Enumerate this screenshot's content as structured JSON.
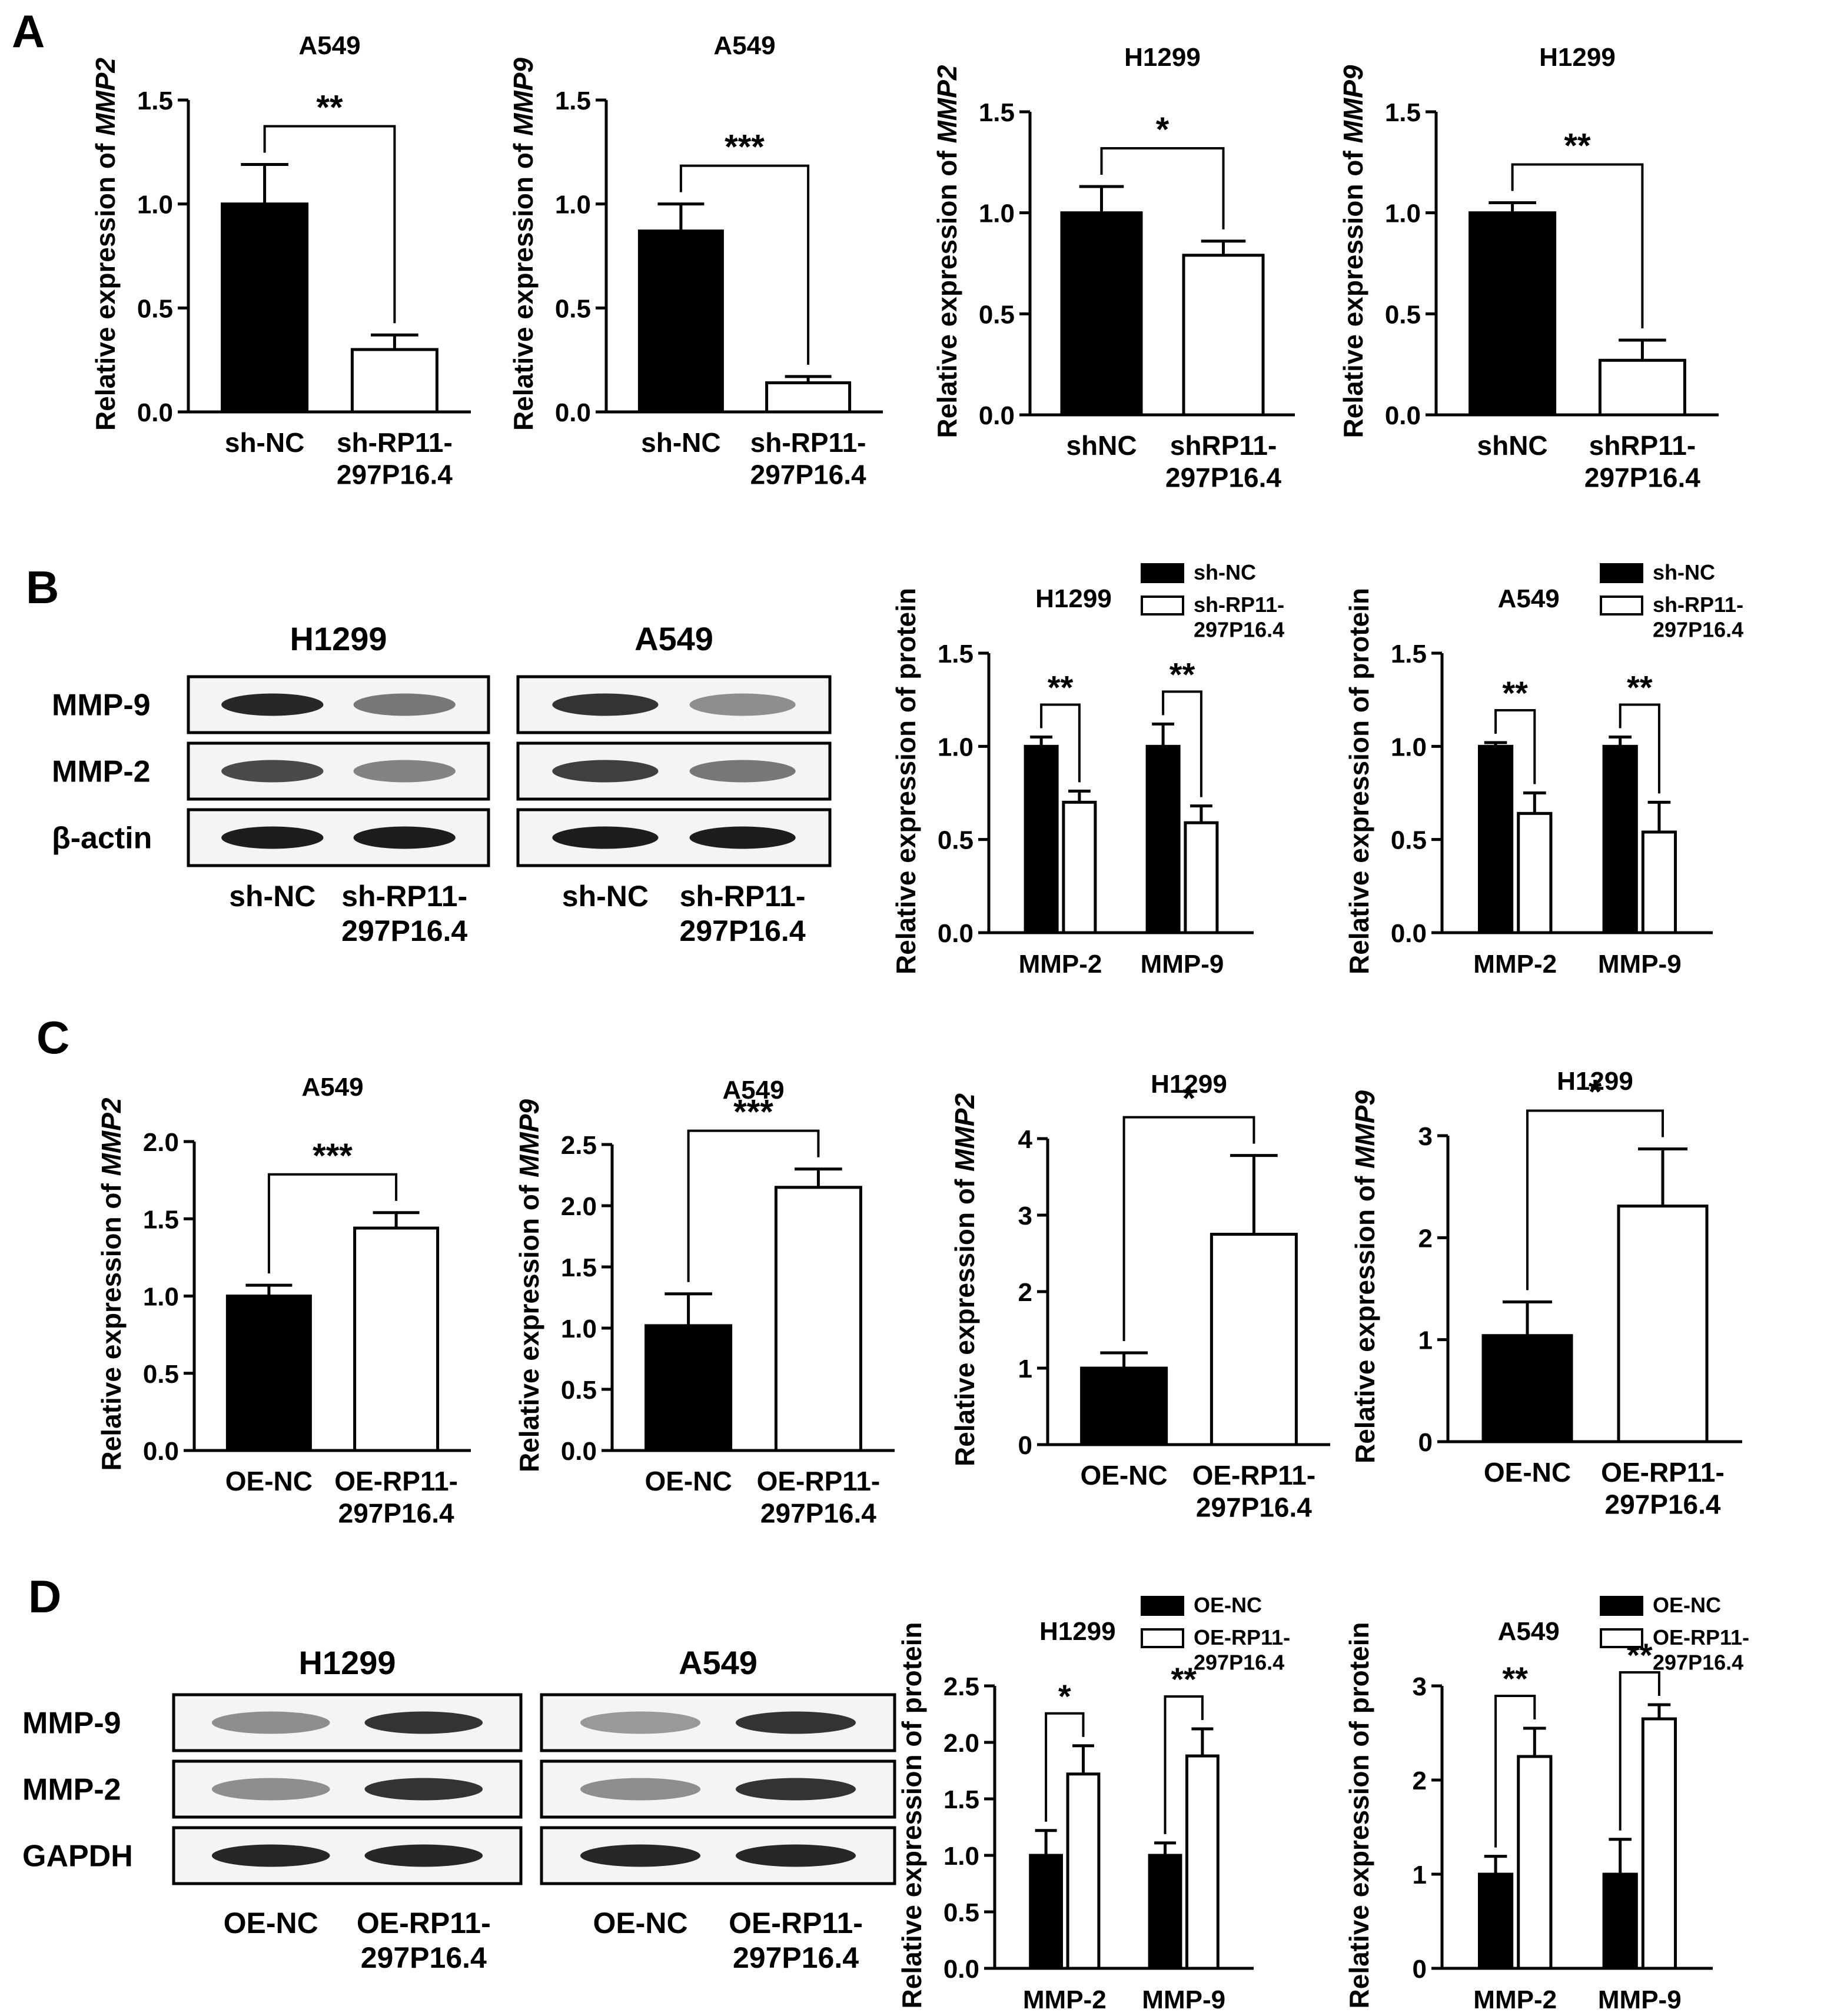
{
  "panels": [
    {
      "label": "A"
    },
    {
      "label": "B"
    },
    {
      "label": "C"
    },
    {
      "label": "D"
    }
  ],
  "blots": [
    {
      "title": "H1299",
      "rows": [
        "MMP-9",
        "MMP-2",
        "β-actin"
      ],
      "lanes": [
        "sh-NC",
        "sh-RP11-\n297P16.4"
      ],
      "intensity": [
        [
          0.9,
          0.55
        ],
        [
          0.75,
          0.5
        ],
        [
          0.95,
          0.95
        ]
      ]
    },
    {
      "title": "A549",
      "rows": [
        "MMP-9",
        "MMP-2",
        "β-actin"
      ],
      "lanes": [
        "sh-NC",
        "sh-RP11-\n297P16.4"
      ],
      "intensity": [
        [
          0.85,
          0.45
        ],
        [
          0.8,
          0.55
        ],
        [
          0.95,
          0.95
        ]
      ]
    },
    {
      "title": "H1299",
      "rows": [
        "MMP-9",
        "MMP-2",
        "GAPDH"
      ],
      "lanes": [
        "OE-NC",
        "OE-RP11-\n297P16.4"
      ],
      "intensity": [
        [
          0.45,
          0.85
        ],
        [
          0.45,
          0.85
        ],
        [
          0.9,
          0.9
        ]
      ]
    },
    {
      "title": "A549",
      "rows": [
        "MMP-9",
        "MMP-2",
        "GAPDH"
      ],
      "lanes": [
        "OE-NC",
        "OE-RP11-\n297P16.4"
      ],
      "intensity": [
        [
          0.4,
          0.85
        ],
        [
          0.45,
          0.85
        ],
        [
          0.9,
          0.9
        ]
      ]
    }
  ],
  "chart_data": [
    {
      "type": "bar",
      "title": "A549",
      "ylabel_prefix": "Relative expression of ",
      "ylabel_gene": "MMP2",
      "categories": [
        "sh-NC",
        "sh-RP11-\n297P16.4"
      ],
      "values": [
        1.0,
        0.3
      ],
      "errors": [
        0.19,
        0.07
      ],
      "ylim": [
        0,
        1.5
      ],
      "ticks": [
        "0.0",
        "0.5",
        "1.0",
        "1.5"
      ],
      "significance": [
        {
          "stars": "**"
        }
      ]
    },
    {
      "type": "bar",
      "title": "A549",
      "ylabel_prefix": "Relative expression of ",
      "ylabel_gene": "MMP9",
      "categories": [
        "sh-NC",
        "sh-RP11-\n297P16.4"
      ],
      "values": [
        0.87,
        0.14
      ],
      "errors": [
        0.13,
        0.03
      ],
      "ylim": [
        0,
        1.5
      ],
      "ticks": [
        "0.0",
        "0.5",
        "1.0",
        "1.5"
      ],
      "significance": [
        {
          "stars": "***"
        }
      ]
    },
    {
      "type": "bar",
      "title": "H1299",
      "ylabel_prefix": "Relative expression of ",
      "ylabel_gene": "MMP2",
      "categories": [
        "shNC",
        "shRP11-\n297P16.4"
      ],
      "values": [
        1.0,
        0.79
      ],
      "errors": [
        0.13,
        0.07
      ],
      "ylim": [
        0,
        1.5
      ],
      "ticks": [
        "0.0",
        "0.5",
        "1.0",
        "1.5"
      ],
      "significance": [
        {
          "stars": "*"
        }
      ]
    },
    {
      "type": "bar",
      "title": "H1299",
      "ylabel_prefix": "Relative expression of ",
      "ylabel_gene": "MMP9",
      "categories": [
        "shNC",
        "shRP11-\n297P16.4"
      ],
      "values": [
        1.0,
        0.27
      ],
      "errors": [
        0.05,
        0.1
      ],
      "ylim": [
        0,
        1.5
      ],
      "ticks": [
        "0.0",
        "0.5",
        "1.0",
        "1.5"
      ],
      "significance": [
        {
          "stars": "**"
        }
      ]
    },
    {
      "type": "bar",
      "title": "H1299",
      "ylabel": "Relative expression of protein",
      "categories": [
        "MMP-2",
        "MMP-9"
      ],
      "series": [
        {
          "name": "sh-NC",
          "values": [
            1.0,
            1.0
          ],
          "errors": [
            0.05,
            0.12
          ]
        },
        {
          "name": "sh-RP11-\n297P16.4",
          "values": [
            0.7,
            0.59
          ],
          "errors": [
            0.06,
            0.09
          ]
        }
      ],
      "ylim": [
        0,
        1.5
      ],
      "ticks": [
        "0.0",
        "0.5",
        "1.0",
        "1.5"
      ],
      "significance": [
        {
          "stars": "**"
        },
        {
          "stars": "**"
        }
      ],
      "legend": "top-right"
    },
    {
      "type": "bar",
      "title": "A549",
      "ylabel": "Relative expression of protein",
      "categories": [
        "MMP-2",
        "MMP-9"
      ],
      "series": [
        {
          "name": "sh-NC",
          "values": [
            1.0,
            1.0
          ],
          "errors": [
            0.02,
            0.05
          ]
        },
        {
          "name": "sh-RP11-\n297P16.4",
          "values": [
            0.64,
            0.54
          ],
          "errors": [
            0.11,
            0.16
          ]
        }
      ],
      "ylim": [
        0,
        1.5
      ],
      "ticks": [
        "0.0",
        "0.5",
        "1.0",
        "1.5"
      ],
      "significance": [
        {
          "stars": "**"
        },
        {
          "stars": "**"
        }
      ],
      "legend": "top-right"
    },
    {
      "type": "bar",
      "title": "A549",
      "ylabel_prefix": "Relative expression of ",
      "ylabel_gene": "MMP2",
      "categories": [
        "OE-NC",
        "OE-RP11-\n297P16.4"
      ],
      "values": [
        1.0,
        1.44
      ],
      "errors": [
        0.07,
        0.1
      ],
      "ylim": [
        0,
        2.0
      ],
      "ticks": [
        "0.0",
        "0.5",
        "1.0",
        "1.5",
        "2.0"
      ],
      "significance": [
        {
          "stars": "***"
        }
      ]
    },
    {
      "type": "bar",
      "title": "A549",
      "ylabel_prefix": "Relative expression of ",
      "ylabel_gene": "MMP9",
      "categories": [
        "OE-NC",
        "OE-RP11-\n297P16.4"
      ],
      "values": [
        1.02,
        2.15
      ],
      "errors": [
        0.26,
        0.15
      ],
      "ylim": [
        0,
        2.5
      ],
      "ticks": [
        "0.0",
        "0.5",
        "1.0",
        "1.5",
        "2.0",
        "2.5"
      ],
      "significance": [
        {
          "stars": "***"
        }
      ]
    },
    {
      "type": "bar",
      "title": "H1299",
      "ylabel_prefix": "Relative expression of ",
      "ylabel_gene": "MMP2",
      "categories": [
        "OE-NC",
        "OE-RP11-\n297P16.4"
      ],
      "values": [
        1.0,
        2.75
      ],
      "errors": [
        0.2,
        1.03
      ],
      "ylim": [
        0,
        4
      ],
      "ticks": [
        "0",
        "1",
        "2",
        "3",
        "4"
      ],
      "significance": [
        {
          "stars": "*"
        }
      ]
    },
    {
      "type": "bar",
      "title": "H1299",
      "ylabel_prefix": "Relative expression of ",
      "ylabel_gene": "MMP9",
      "categories": [
        "OE-NC",
        "OE-RP11-\n297P16.4"
      ],
      "values": [
        1.04,
        2.31
      ],
      "errors": [
        0.33,
        0.56
      ],
      "ylim": [
        0,
        3
      ],
      "ticks": [
        "0",
        "1",
        "2",
        "3"
      ],
      "significance": [
        {
          "stars": "*"
        }
      ]
    },
    {
      "type": "bar",
      "title": "H1299",
      "ylabel": "Relative expression of protein",
      "categories": [
        "MMP-2",
        "MMP-9"
      ],
      "series": [
        {
          "name": "OE-NC",
          "values": [
            1.0,
            1.0
          ],
          "errors": [
            0.22,
            0.11
          ]
        },
        {
          "name": "OE-RP11-\n297P16.4",
          "values": [
            1.72,
            1.88
          ],
          "errors": [
            0.25,
            0.24
          ]
        }
      ],
      "ylim": [
        0,
        2.5
      ],
      "ticks": [
        "0.0",
        "0.5",
        "1.0",
        "1.5",
        "2.0",
        "2.5"
      ],
      "significance": [
        {
          "stars": "*"
        },
        {
          "stars": "**"
        }
      ],
      "legend": "top-right"
    },
    {
      "type": "bar",
      "title": "A549",
      "ylabel": "Relative expression of protein",
      "categories": [
        "MMP-2",
        "MMP-9"
      ],
      "series": [
        {
          "name": "OE-NC",
          "values": [
            1.0,
            1.0
          ],
          "errors": [
            0.19,
            0.37
          ]
        },
        {
          "name": "OE-RP11-\n297P16.4",
          "values": [
            2.25,
            2.65
          ],
          "errors": [
            0.3,
            0.15
          ]
        }
      ],
      "ylim": [
        0,
        3
      ],
      "ticks": [
        "0",
        "1",
        "2",
        "3"
      ],
      "significance": [
        {
          "stars": "**"
        },
        {
          "stars": "**"
        }
      ],
      "legend": "top-right"
    }
  ]
}
